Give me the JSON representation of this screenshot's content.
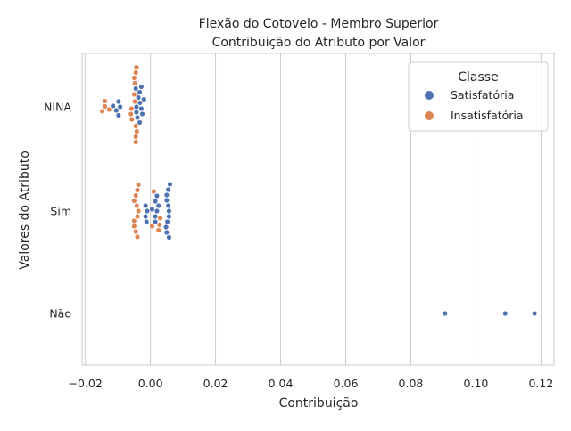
{
  "chart_data": {
    "type": "scatter",
    "subtype": "swarm",
    "title": "Flexão do Cotovelo - Membro Superior",
    "subtitle": "Contribuição do Atributo por Valor",
    "xlabel": "Contribuição",
    "ylabel": "Valores do Atributo",
    "xlim": [
      -0.021,
      0.124
    ],
    "x_ticks": [
      -0.02,
      0.0,
      0.02,
      0.04,
      0.06,
      0.08,
      0.1,
      0.12
    ],
    "x_tick_labels": [
      "−0.02",
      "0.00",
      "0.02",
      "0.04",
      "0.06",
      "0.08",
      "0.10",
      "0.12"
    ],
    "categories": [
      "NINA",
      "Sim",
      "Não"
    ],
    "grid": "vertical",
    "legend_position": "top-right",
    "legend_title": "Classe",
    "series": [
      {
        "name": "Satisfatória",
        "color": "#4c72b0",
        "points": {
          "NINA": [
            -0.0043,
            -0.0043,
            -0.0028,
            -0.0032,
            -0.0093,
            -0.0037,
            -0.0105,
            -0.0115,
            -0.0025,
            -0.0098,
            -0.004,
            -0.002,
            -0.0098,
            -0.0033,
            -0.0033,
            -0.0028,
            -0.0045
          ],
          "Sim": [
            0.0057,
            0.0057,
            0.002,
            0.0055,
            0.0015,
            -0.001,
            0.0052,
            -0.0015,
            0.005,
            -0.0015,
            0.0025,
            0.0048,
            0.0005,
            -0.0012,
            0.005,
            0.0015,
            0.005,
            0.0015,
            0.0055,
            0.002,
            0.0057,
            0.006
          ],
          "Não": [
            0.0905,
            0.109,
            0.118
          ]
        }
      },
      {
        "name": "Insatisfatória",
        "color": "#dd8452",
        "points": {
          "NINA": [
            -0.0045,
            -0.0048,
            -0.0048,
            -0.0042,
            -0.0127,
            -0.005,
            -0.014,
            -0.0058,
            -0.0148,
            -0.006,
            -0.014,
            -0.0057,
            -0.005,
            -0.0045,
            -0.0045,
            -0.0045,
            -0.0043
          ],
          "Sim": [
            0.0028,
            -0.0037,
            -0.004,
            -0.0042,
            -0.005,
            0.0005,
            -0.005,
            0.001,
            0.0025,
            -0.005,
            0.003,
            -0.0045,
            -0.0045,
            -0.004,
            -0.004,
            -0.0037
          ]
        }
      }
    ]
  }
}
